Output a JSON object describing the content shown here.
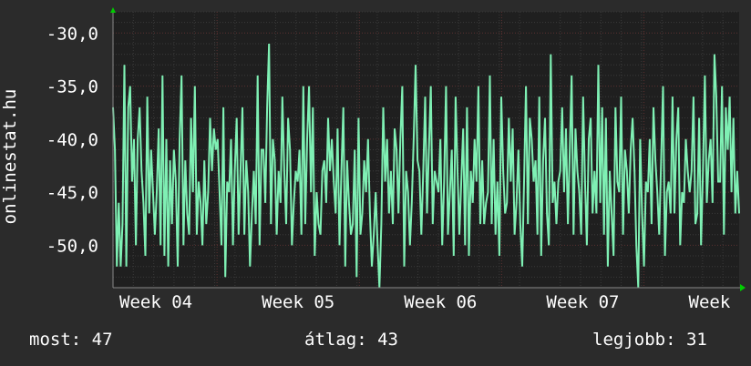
{
  "stats": {
    "current": "most: 47",
    "average": "átlag: 43",
    "best": "legjobb: 31"
  },
  "colors": {
    "background": "#2b2b2b",
    "plot_background": "#1f1f1f",
    "line": "#7ff0b4",
    "grid_major": "#5a3030",
    "grid_minor": "#3a3a3a",
    "axis_arrow": "#00cc00"
  },
  "chart_data": {
    "type": "line",
    "title": "",
    "xlabel": "",
    "ylabel": "onlinestat.hu",
    "ylim": [
      -54,
      -28
    ],
    "yticks": [
      -30,
      -35,
      -40,
      -45,
      -50
    ],
    "ytick_labels": [
      "-30,0",
      "-35,0",
      "-40,0",
      "-45,0",
      "-50,0"
    ],
    "xlim": [
      0,
      4.4
    ],
    "xticks": [
      0,
      1,
      2,
      3,
      4
    ],
    "xtick_labels": [
      "Week 04",
      "Week 05",
      "Week 06",
      "Week 07",
      "Week"
    ],
    "series": [
      {
        "values": [
          -37,
          -41,
          -52,
          -46,
          -52,
          -48,
          -33,
          -52,
          -37,
          -35,
          -44,
          -40,
          -50,
          -40,
          -37,
          -43,
          -46,
          -51,
          -36,
          -47,
          -41,
          -45,
          -49,
          -45,
          -39,
          -50,
          -34,
          -51,
          -40,
          -52,
          -42,
          -48,
          -41,
          -44,
          -52,
          -40,
          -34,
          -50,
          -42,
          -47,
          -49,
          -38,
          -45,
          -35,
          -49,
          -44,
          -46,
          -50,
          -42,
          -48,
          -45,
          -38,
          -43,
          -39,
          -41,
          -40,
          -45,
          -50,
          -37,
          -53,
          -44,
          -45,
          -40,
          -50,
          -43,
          -38,
          -49,
          -43,
          -37,
          -49,
          -42,
          -45,
          -52,
          -47,
          -43,
          -48,
          -34,
          -50,
          -41,
          -41,
          -46,
          -37,
          -31,
          -48,
          -40,
          -42,
          -49,
          -43,
          -46,
          -36,
          -43,
          -48,
          -38,
          -41,
          -50,
          -46,
          -43,
          -44,
          -41,
          -49,
          -35,
          -48,
          -40,
          -35,
          -45,
          -37,
          -51,
          -45,
          -48,
          -49,
          -43,
          -42,
          -46,
          -38,
          -43,
          -40,
          -44,
          -47,
          -39,
          -50,
          -43,
          -37,
          -52,
          -42,
          -46,
          -49,
          -48,
          -41,
          -53,
          -38,
          -49,
          -47,
          -42,
          -45,
          -40,
          -47,
          -52,
          -49,
          -45,
          -50,
          -54,
          -48,
          -37,
          -44,
          -40,
          -47,
          -43,
          -48,
          -39,
          -41,
          -47,
          -40,
          -35,
          -52,
          -43,
          -45,
          -50,
          -46,
          -40,
          -33,
          -42,
          -43,
          -49,
          -43,
          -36,
          -47,
          -41,
          -35,
          -48,
          -43,
          -44,
          -45,
          -40,
          -50,
          -44,
          -35,
          -49,
          -45,
          -41,
          -51,
          -36,
          -43,
          -49,
          -44,
          -39,
          -50,
          -37,
          -51,
          -43,
          -46,
          -40,
          -44,
          -35,
          -48,
          -42,
          -48,
          -46,
          -45,
          -34,
          -48,
          -40,
          -49,
          -44,
          -51,
          -36,
          -43,
          -47,
          -46,
          -38,
          -44,
          -39,
          -49,
          -46,
          -41,
          -48,
          -52,
          -44,
          -35,
          -48,
          -38,
          -40,
          -44,
          -42,
          -49,
          -36,
          -51,
          -42,
          -38,
          -47,
          -50,
          -32,
          -46,
          -44,
          -48,
          -44,
          -43,
          -37,
          -45,
          -39,
          -48,
          -41,
          -34,
          -49,
          -39,
          -43,
          -45,
          -49,
          -36,
          -44,
          -50,
          -40,
          -38,
          -47,
          -43,
          -47,
          -33,
          -46,
          -37,
          -49,
          -38,
          -52,
          -43,
          -47,
          -51,
          -37,
          -44,
          -45,
          -36,
          -49,
          -41,
          -43,
          -47,
          -41,
          -38,
          -43,
          -50,
          -54,
          -40,
          -47,
          -52,
          -44,
          -45,
          -40,
          -48,
          -37,
          -42,
          -45,
          -49,
          -42,
          -35,
          -51,
          -45,
          -44,
          -47,
          -36,
          -47,
          -40,
          -37,
          -50,
          -45,
          -46,
          -40,
          -43,
          -45,
          -43,
          -36,
          -48,
          -47,
          -38,
          -50,
          -43,
          -34,
          -46,
          -42,
          -40,
          -46,
          -32,
          -36,
          -44,
          -44,
          -35,
          -49,
          -37,
          -41,
          -36,
          -45,
          -38,
          -47,
          -43,
          -47
        ]
      }
    ]
  }
}
